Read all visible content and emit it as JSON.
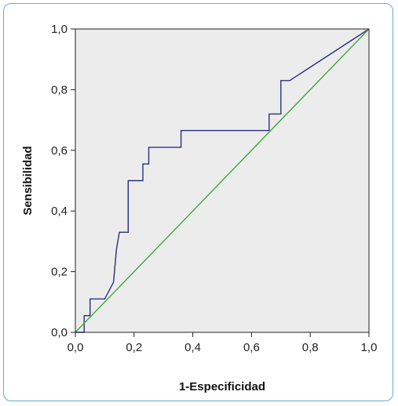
{
  "chart_data": {
    "type": "line",
    "xlabel": "1-Especificidad",
    "ylabel": "Sensibilidad",
    "xlim": [
      0,
      1
    ],
    "ylim": [
      0,
      1
    ],
    "x_ticks": [
      "0,0",
      "0,2",
      "0,4",
      "0,6",
      "0,8",
      "1,0"
    ],
    "y_ticks": [
      "0,0",
      "0,2",
      "0,4",
      "0,6",
      "0,8",
      "1,0"
    ],
    "grid": false,
    "plot_background": "#ececec",
    "series": [
      {
        "color": "#2b2f7f",
        "x": [
          0,
          0.03,
          0.03,
          0.05,
          0.05,
          0.1,
          0.13,
          0.13,
          0.14,
          0.14,
          0.15,
          0.15,
          0.18,
          0.18,
          0.23,
          0.23,
          0.24,
          0.24,
          0.25,
          0.25,
          0.36,
          0.36,
          0.66,
          0.66,
          0.69,
          0.69,
          0.7,
          0.7,
          0.73,
          1.0
        ],
        "y": [
          0,
          0,
          0.055,
          0.055,
          0.11,
          0.11,
          0.165,
          0.165,
          0.275,
          0.275,
          0.33,
          0.33,
          0.33,
          0.5,
          0.5,
          0.555,
          0.555,
          0.555,
          0.555,
          0.61,
          0.61,
          0.665,
          0.665,
          0.72,
          0.72,
          0.72,
          0.72,
          0.83,
          0.83,
          1.0
        ]
      },
      {
        "color": "#3daa3d",
        "x": [
          0,
          1
        ],
        "y": [
          0,
          1
        ]
      }
    ]
  }
}
